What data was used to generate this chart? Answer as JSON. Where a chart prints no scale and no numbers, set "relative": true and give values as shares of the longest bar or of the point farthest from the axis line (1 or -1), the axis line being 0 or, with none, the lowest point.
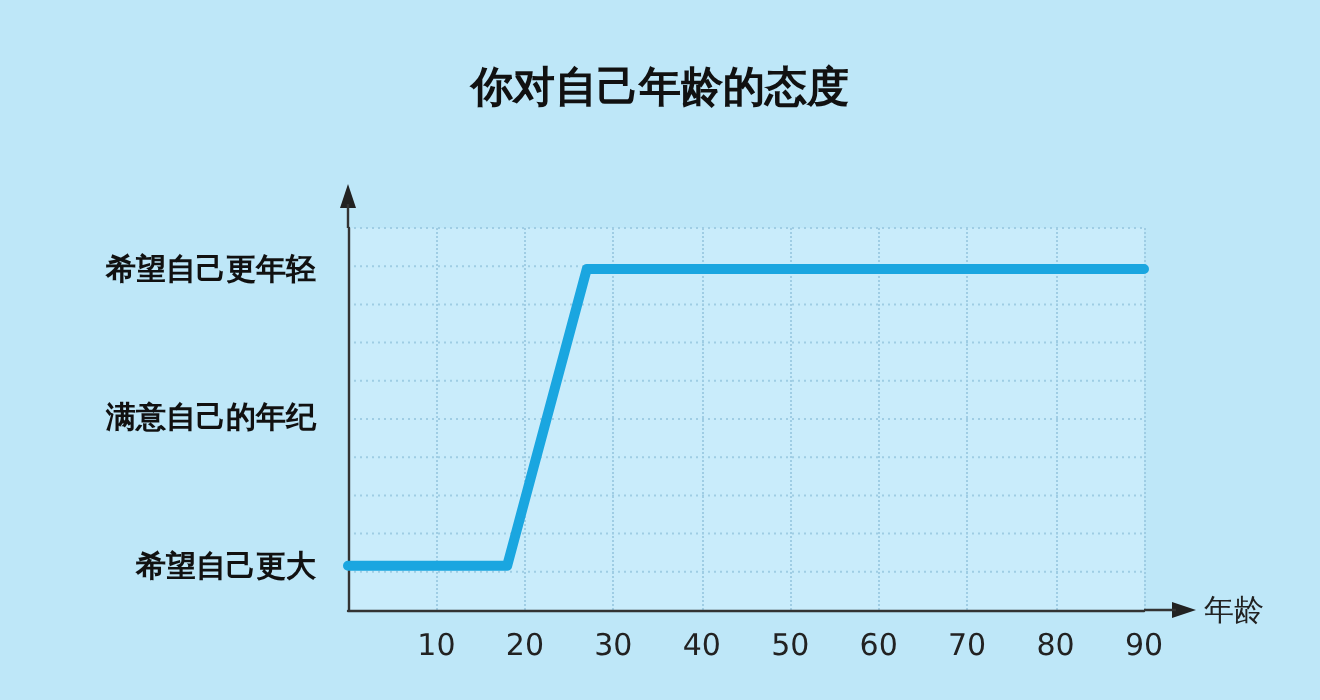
{
  "chart_data": {
    "type": "line",
    "title": "你对自己年龄的态度",
    "xlabel": "年龄",
    "x": [
      0,
      18,
      27,
      90
    ],
    "relative": true,
    "series": [
      {
        "color": "#1aa6e0",
        "values": [
          0.13,
          0.13,
          1,
          1
        ]
      }
    ],
    "annotations": [
      "希望自己更大",
      "满意自己的年纪",
      "希望自己更年轻"
    ],
    "xlim": [
      0,
      90
    ],
    "xticks": [
      10,
      20,
      30,
      40,
      50,
      60,
      70,
      80,
      90
    ],
    "grid": true,
    "marker": "none",
    "line_style": "solid"
  }
}
